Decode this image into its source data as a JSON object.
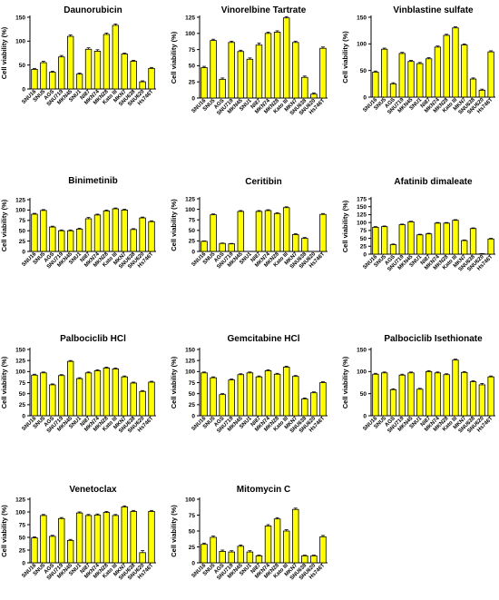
{
  "figure": {
    "bar_color": "#ffff00",
    "bar_stroke": "#000000"
  },
  "chart_data": [
    {
      "type": "bar",
      "title": "Daunorubicin",
      "ylabel": "Cell viability (%)",
      "ylim": [
        0,
        150
      ],
      "yticks": [
        0,
        50,
        100,
        150
      ],
      "categories": [
        "SNU16",
        "SNU5",
        "AGS",
        "SNU719",
        "MKN45",
        "SNU1",
        "NI87",
        "MKN74",
        "MKN28",
        "Kato III",
        "MKN7",
        "SNU638",
        "SNU620",
        "Hs746T"
      ],
      "values": [
        41,
        55,
        35,
        67,
        110,
        31,
        83,
        79,
        114,
        133,
        73,
        58,
        15,
        43
      ],
      "errors": [
        2,
        3,
        2,
        3,
        3,
        2,
        3,
        3,
        3,
        3,
        2,
        2,
        2,
        2
      ],
      "grid": false,
      "legend": "none"
    },
    {
      "type": "bar",
      "title": "Vinorelbine Tartrate",
      "ylabel": "Cell viability (%)",
      "ylim": [
        0,
        125
      ],
      "yticks": [
        0,
        25,
        50,
        75,
        100,
        125
      ],
      "categories": [
        "SNU16",
        "SNU5",
        "AGS",
        "SNU719",
        "MKN45",
        "SNU1",
        "NI87",
        "MKN74",
        "MKN28",
        "Kato III",
        "MKN7",
        "SNU638",
        "SNU620",
        "Hs746T"
      ],
      "values": [
        47,
        89,
        29,
        86,
        72,
        60,
        82,
        100,
        102,
        124,
        86,
        32,
        6,
        77
      ],
      "errors": [
        2,
        2,
        2,
        2,
        2,
        2,
        3,
        2,
        2,
        2,
        2,
        2,
        2,
        2
      ],
      "grid": false,
      "legend": "none"
    },
    {
      "type": "bar",
      "title": "Vinblastine sulfate",
      "ylabel": "Cell viability (%)",
      "ylim": [
        0,
        150
      ],
      "yticks": [
        0,
        50,
        100,
        150
      ],
      "categories": [
        "SNU16",
        "SNU5",
        "AGS",
        "SNU719",
        "MKN45",
        "SNU1",
        "NI87",
        "MKN74",
        "MKN28",
        "Kato III",
        "MKN7",
        "SNU638",
        "SNU620",
        "Hs746T"
      ],
      "values": [
        47,
        90,
        25,
        82,
        67,
        63,
        72,
        94,
        116,
        130,
        98,
        34,
        13,
        85
      ],
      "errors": [
        2,
        2,
        2,
        2,
        2,
        2,
        2,
        2,
        2,
        2,
        2,
        2,
        2,
        2
      ],
      "grid": false,
      "legend": "none"
    },
    {
      "type": "bar",
      "title": "Binimetinib",
      "ylabel": "Cell viability (%)",
      "ylim": [
        0,
        125
      ],
      "yticks": [
        0,
        25,
        50,
        75,
        100,
        125
      ],
      "categories": [
        "SNU16",
        "SNU5",
        "AGS",
        "SNU719",
        "MKN45",
        "SNU1",
        "NI87",
        "MKN74",
        "MKN28",
        "Kato III",
        "MKN7",
        "SNU638",
        "SNU620",
        "Hs746T"
      ],
      "values": [
        90,
        99,
        59,
        50,
        50,
        54,
        79,
        88,
        98,
        103,
        100,
        53,
        81,
        72
      ],
      "errors": [
        2,
        2,
        2,
        2,
        2,
        2,
        3,
        2,
        2,
        2,
        2,
        2,
        2,
        2
      ],
      "grid": false,
      "legend": "none"
    },
    {
      "type": "bar",
      "title": "Ceritibin",
      "ylabel": "Cell viability (%)",
      "ylim": [
        0,
        125
      ],
      "yticks": [
        0,
        25,
        50,
        75,
        100,
        125
      ],
      "categories": [
        "SNU16",
        "SNU5",
        "AGS",
        "SNU719",
        "MKN45",
        "SNU1",
        "NI87",
        "MKN74",
        "MKN28",
        "Kato III",
        "MKN7",
        "SNU638",
        "SNU620",
        "Hs746T"
      ],
      "values": [
        24,
        87,
        19,
        18,
        95,
        0,
        95,
        97,
        90,
        104,
        40,
        31,
        0,
        88
      ],
      "errors": [
        1,
        2,
        1,
        1,
        2,
        0,
        2,
        2,
        2,
        2,
        2,
        2,
        0,
        2
      ],
      "grid": false,
      "legend": "none"
    },
    {
      "type": "bar",
      "title": "Afatinib dimaleate",
      "ylabel": "Cell viability (%)",
      "ylim": [
        0,
        175
      ],
      "yticks": [
        0,
        25,
        50,
        75,
        100,
        125,
        150,
        175
      ],
      "categories": [
        "SNU16",
        "SNU5",
        "AGS",
        "SNU719",
        "MKN45",
        "SNU1",
        "NI87",
        "MKN74",
        "MKN28",
        "Kato III",
        "MKN7",
        "SNU638",
        "SNU620",
        "Hs746T"
      ],
      "values": [
        85,
        87,
        30,
        93,
        102,
        61,
        64,
        98,
        98,
        107,
        43,
        81,
        1,
        48
      ],
      "errors": [
        2,
        2,
        2,
        2,
        2,
        2,
        2,
        2,
        2,
        2,
        2,
        2,
        1,
        2
      ],
      "grid": false,
      "legend": "none"
    },
    {
      "type": "bar",
      "title": "Palbociclib HCl",
      "ylabel": "Cell viability (%)",
      "ylim": [
        0,
        150
      ],
      "yticks": [
        0,
        25,
        50,
        75,
        100,
        125,
        150
      ],
      "categories": [
        "SNU16",
        "SNU5",
        "AGS",
        "SNU719",
        "MKN45",
        "SNU1",
        "NI87",
        "MKN74",
        "MKN28",
        "Kato III",
        "MKN7",
        "SNU638",
        "SNU620",
        "Hs746T"
      ],
      "values": [
        92,
        97,
        70,
        91,
        123,
        84,
        97,
        102,
        108,
        106,
        88,
        74,
        55,
        76
      ],
      "errors": [
        2,
        2,
        2,
        2,
        2,
        2,
        2,
        2,
        2,
        2,
        2,
        2,
        2,
        2
      ],
      "grid": false,
      "legend": "none"
    },
    {
      "type": "bar",
      "title": "Gemcitabine HCl",
      "ylabel": "Cell viability (%)",
      "ylim": [
        0,
        150
      ],
      "yticks": [
        0,
        25,
        50,
        75,
        100,
        125,
        150
      ],
      "categories": [
        "SNU16",
        "SNU5",
        "AGS",
        "SNU719",
        "MKN45",
        "SNU1",
        "NI87",
        "MKN74",
        "MKN28",
        "Kato III",
        "MKN7",
        "SNU638",
        "SNU620",
        "Hs746T"
      ],
      "values": [
        97,
        86,
        48,
        81,
        93,
        97,
        88,
        102,
        94,
        110,
        89,
        38,
        52,
        75
      ],
      "errors": [
        2,
        2,
        2,
        2,
        2,
        2,
        2,
        2,
        2,
        2,
        2,
        2,
        2,
        2
      ],
      "grid": false,
      "legend": "none"
    },
    {
      "type": "bar",
      "title": "Palbociclib Isethionate",
      "ylabel": "Cell viability (%)",
      "ylim": [
        0,
        150
      ],
      "yticks": [
        0,
        50,
        100,
        150
      ],
      "categories": [
        "SNU16",
        "SNU5",
        "AGS",
        "SNU719",
        "MKN45",
        "SNU1",
        "NI87",
        "MKN74",
        "MKN28",
        "Kato III",
        "MKN7",
        "SNU638",
        "SNU620",
        "Hs746T"
      ],
      "values": [
        94,
        97,
        59,
        92,
        97,
        60,
        100,
        97,
        93,
        126,
        98,
        77,
        70,
        88
      ],
      "errors": [
        2,
        2,
        2,
        2,
        2,
        2,
        2,
        2,
        2,
        2,
        2,
        2,
        3,
        2
      ],
      "grid": false,
      "legend": "none"
    },
    {
      "type": "bar",
      "title": "Venetoclax",
      "ylabel": "Cell viability (%)",
      "ylim": [
        0,
        125
      ],
      "yticks": [
        0,
        25,
        50,
        75,
        100,
        125
      ],
      "categories": [
        "SNU16",
        "SNU5",
        "AGS",
        "SNU719",
        "MKN45",
        "SNU1",
        "NI87",
        "MKN74",
        "MKN28",
        "Kato III",
        "MKN7",
        "SNU638",
        "SNU620",
        "Hs746T"
      ],
      "values": [
        49,
        93,
        52,
        87,
        44,
        98,
        93,
        94,
        99,
        93,
        110,
        101,
        20,
        101
      ],
      "errors": [
        2,
        2,
        2,
        2,
        2,
        2,
        2,
        2,
        2,
        2,
        2,
        2,
        4,
        2
      ],
      "grid": false,
      "legend": "none"
    },
    {
      "type": "bar",
      "title": "Mitomycin C",
      "ylabel": "Cell viability (%)",
      "ylim": [
        0,
        100
      ],
      "yticks": [
        0,
        25,
        50,
        75,
        100
      ],
      "categories": [
        "SNU16",
        "SNU5",
        "AGS",
        "SNU719",
        "MKN45",
        "SNU1",
        "NI87",
        "MKN74",
        "MKN28",
        "Kato III",
        "MKN7",
        "SNU638",
        "SNU620",
        "Hs746T"
      ],
      "values": [
        29,
        40,
        18,
        17,
        26,
        17,
        11,
        58,
        69,
        50,
        84,
        11,
        11,
        41
      ],
      "errors": [
        2,
        2,
        2,
        2,
        2,
        2,
        1,
        2,
        2,
        2,
        2,
        1,
        1,
        2
      ],
      "grid": false,
      "legend": "none"
    }
  ]
}
